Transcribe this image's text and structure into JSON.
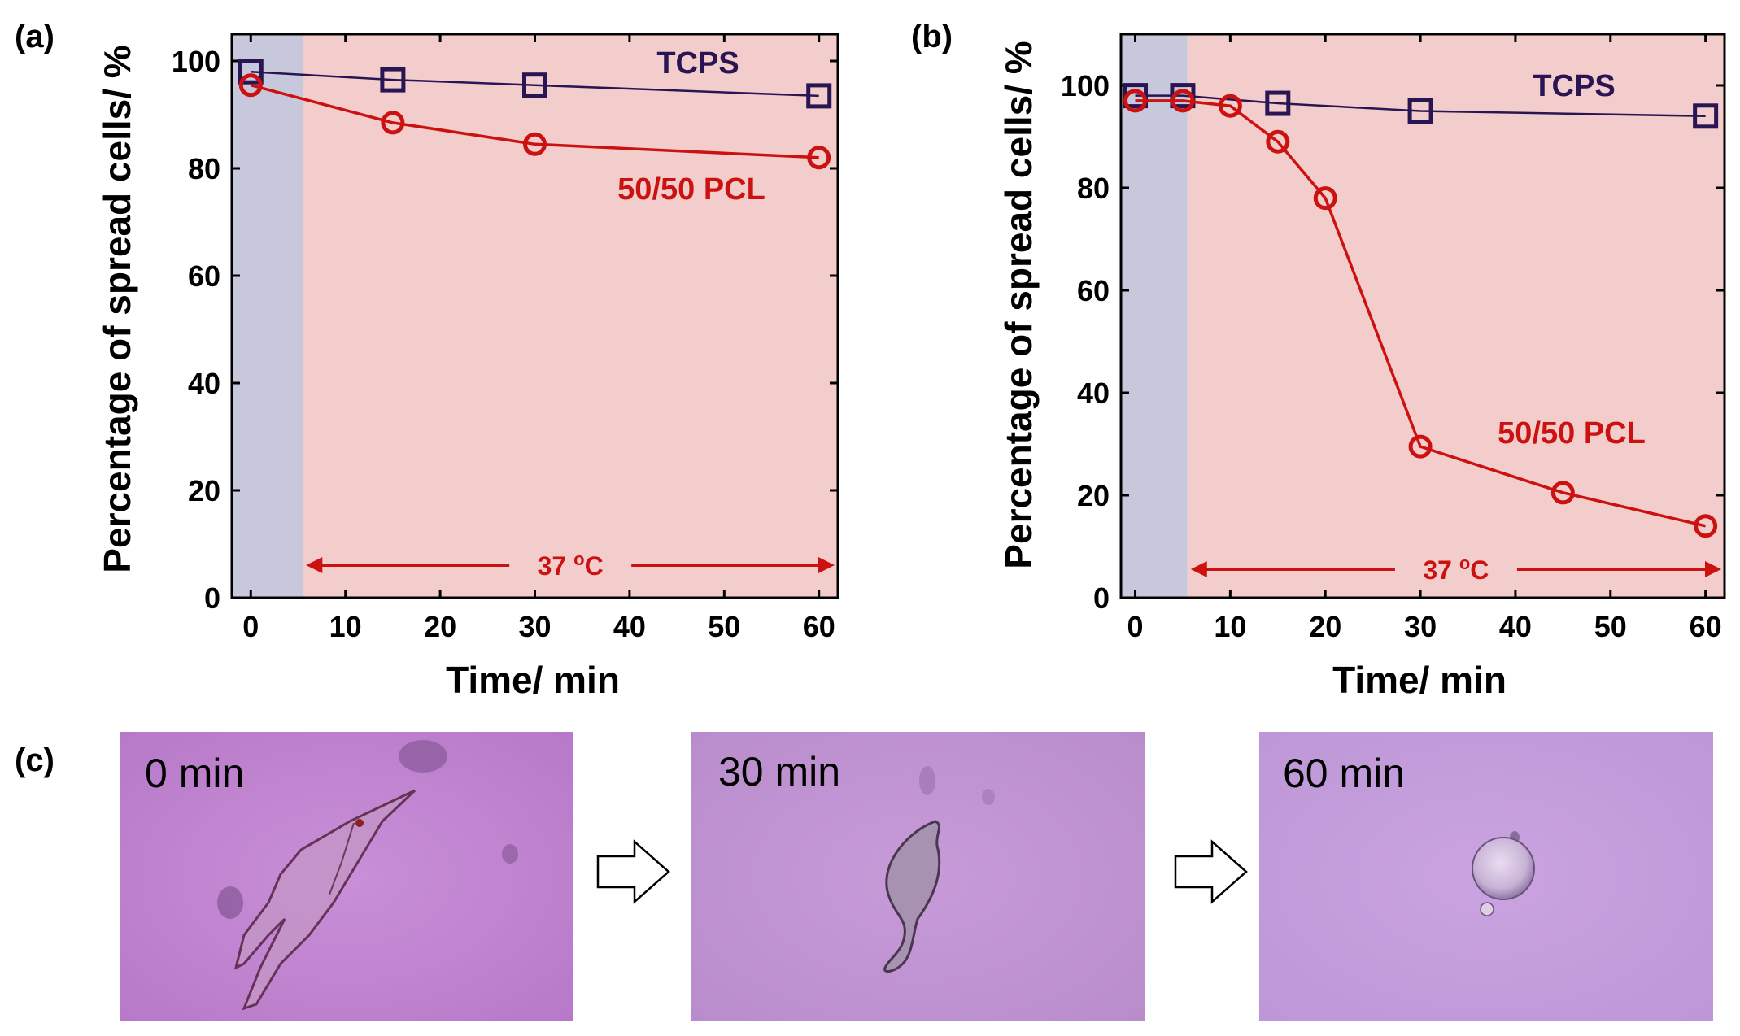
{
  "panels": {
    "a": "(a)",
    "b": "(b)",
    "c": "(c)"
  },
  "colors": {
    "tcps": "#2a1554",
    "pcl": "#cc1111",
    "cold_region": "#c8c8dc",
    "warm_region": "#f3cccc",
    "arrow": "#cc1111"
  },
  "chart_data": [
    {
      "type": "line",
      "panel": "(a)",
      "xlabel": "Time/ min",
      "ylabel": "Percentage of spread cells/ %",
      "xlim": [
        -2,
        62
      ],
      "ylim": [
        0,
        105
      ],
      "xticks": [
        0,
        10,
        20,
        30,
        40,
        50,
        60
      ],
      "yticks": [
        0,
        20,
        40,
        60,
        80,
        100
      ],
      "cold_region_end": 5.5,
      "annotation": "37 °C",
      "annotation_base": "37 ",
      "annotation_sup": "o",
      "annotation_unit": "C",
      "series": [
        {
          "name": "TCPS",
          "x": [
            0,
            15,
            30,
            60
          ],
          "y": [
            98,
            96.5,
            95.5,
            93.5
          ],
          "marker": "square"
        },
        {
          "name": "50/50 PCL",
          "x": [
            0,
            15,
            30,
            60
          ],
          "y": [
            95.5,
            88.5,
            84.5,
            82
          ],
          "marker": "circle"
        }
      ],
      "labels": {
        "tcps": "TCPS",
        "pcl": "50/50 PCL"
      }
    },
    {
      "type": "line",
      "panel": "(b)",
      "xlabel": "Time/ min",
      "ylabel": "Percentage of spread cells/ %",
      "xlim": [
        -1.5,
        62
      ],
      "ylim": [
        0,
        110
      ],
      "xticks": [
        0,
        10,
        20,
        30,
        40,
        50,
        60
      ],
      "yticks": [
        0,
        20,
        40,
        60,
        80,
        100
      ],
      "cold_region_end": 5.5,
      "annotation": "37 °C",
      "annotation_base": "37 ",
      "annotation_sup": "o",
      "annotation_unit": "C",
      "series": [
        {
          "name": "TCPS",
          "x": [
            0,
            5,
            15,
            30,
            60
          ],
          "y": [
            98,
            98,
            96.5,
            95,
            94
          ],
          "marker": "square"
        },
        {
          "name": "50/50 PCL",
          "x": [
            0,
            5,
            10,
            15,
            20,
            30,
            45,
            60
          ],
          "y": [
            97,
            97,
            96,
            89,
            78,
            29.5,
            20.5,
            14
          ],
          "marker": "circle"
        }
      ],
      "labels": {
        "tcps": "TCPS",
        "pcl": "50/50 PCL"
      }
    }
  ],
  "micrographs": [
    {
      "label": "0 min"
    },
    {
      "label": "30 min"
    },
    {
      "label": "60 min"
    }
  ]
}
